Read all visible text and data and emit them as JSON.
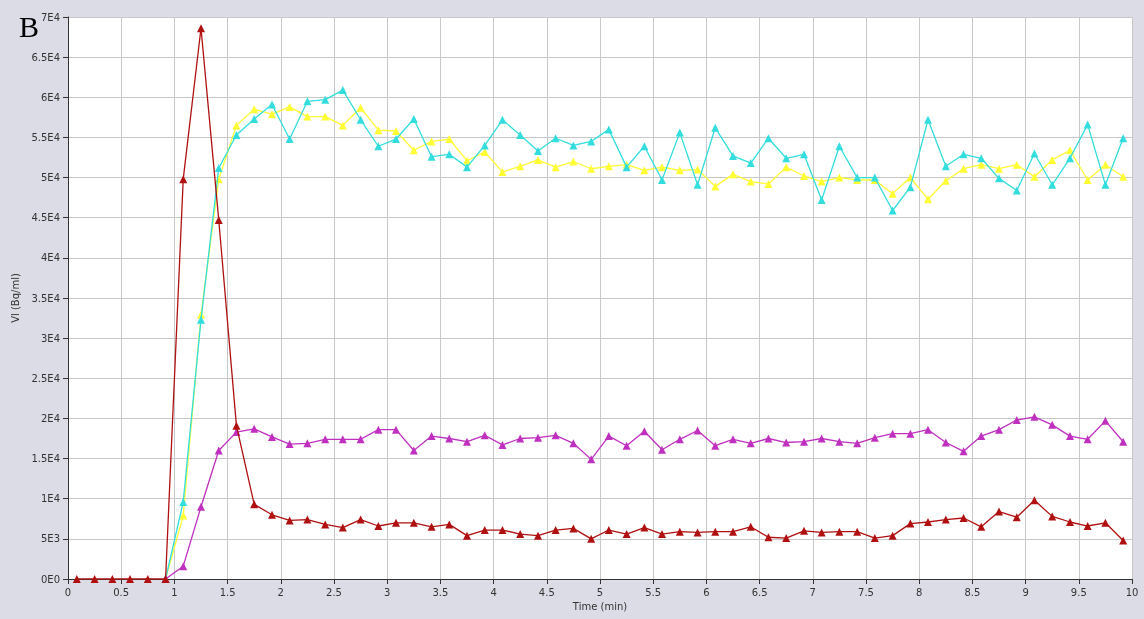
{
  "chart_data": {
    "type": "line",
    "title": "B",
    "xlabel": "Time (min)",
    "ylabel": "Vl (Bq/ml)",
    "x": [
      0.083,
      0.25,
      0.417,
      0.583,
      0.75,
      0.917,
      1.083,
      1.25,
      1.417,
      1.583,
      1.75,
      1.917,
      2.083,
      2.25,
      2.417,
      2.583,
      2.75,
      2.917,
      3.083,
      3.25,
      3.417,
      3.583,
      3.75,
      3.917,
      4.083,
      4.25,
      4.417,
      4.583,
      4.75,
      4.917,
      5.083,
      5.25,
      5.417,
      5.583,
      5.75,
      5.917,
      6.083,
      6.25,
      6.417,
      6.583,
      6.75,
      6.917,
      7.083,
      7.25,
      7.417,
      7.583,
      7.75,
      7.917,
      8.083,
      8.25,
      8.417,
      8.583,
      8.75,
      8.917,
      9.083,
      9.25,
      9.417,
      9.583,
      9.75,
      9.917
    ],
    "series": [
      {
        "color": "#ffff33",
        "values": [
          null,
          null,
          null,
          null,
          null,
          0,
          7900,
          32900,
          49800,
          56500,
          58500,
          57900,
          58800,
          57600,
          57600,
          56500,
          58700,
          55900,
          55800,
          53400,
          54500,
          54800,
          52100,
          53200,
          50700,
          51400,
          52200,
          51300,
          52000,
          51100,
          51400,
          51600,
          50900,
          51300,
          50900,
          51000,
          48900,
          50400,
          49500,
          49200,
          51300,
          50200,
          49500,
          50000,
          49700,
          49700,
          48000,
          50000,
          47300,
          49600,
          51100,
          51600,
          51100,
          51600,
          50100,
          52200,
          53400,
          49700,
          51600,
          50100
        ]
      },
      {
        "color": "#33dddd",
        "values": [
          null,
          null,
          null,
          null,
          null,
          0,
          9600,
          32300,
          51200,
          55300,
          57300,
          59100,
          54800,
          59500,
          59700,
          60900,
          57200,
          53900,
          54800,
          57300,
          52600,
          52900,
          51300,
          54000,
          57200,
          55300,
          53300,
          54900,
          54000,
          54500,
          56000,
          51300,
          53900,
          49700,
          55600,
          49100,
          56200,
          52700,
          51800,
          54900,
          52400,
          52900,
          47200,
          53900,
          50000,
          50000,
          45900,
          48800,
          57200,
          51400,
          52900,
          52400,
          49900,
          48400,
          53000,
          49100,
          52400,
          56600,
          49100,
          54900
        ]
      },
      {
        "color": "#c030c0",
        "values": [
          null,
          null,
          null,
          null,
          null,
          0,
          1600,
          9000,
          16000,
          18300,
          18700,
          17700,
          16800,
          16900,
          17400,
          17400,
          17400,
          18600,
          18600,
          16000,
          17800,
          17500,
          17100,
          17900,
          16700,
          17500,
          17600,
          17900,
          16900,
          14900,
          17800,
          16600,
          18400,
          16100,
          17400,
          18500,
          16600,
          17400,
          16900,
          17500,
          17000,
          17100,
          17500,
          17100,
          16900,
          17600,
          18100,
          18100,
          18600,
          17000,
          15900,
          17800,
          18600,
          19800,
          20200,
          19200,
          17800,
          17400,
          19700,
          17100
        ]
      },
      {
        "color": "#b01010",
        "values": [
          0,
          0,
          0,
          0,
          0,
          0,
          49800,
          68600,
          44700,
          19100,
          9300,
          8000,
          7300,
          7400,
          6800,
          6400,
          7400,
          6600,
          7000,
          7000,
          6500,
          6800,
          5400,
          6100,
          6100,
          5600,
          5400,
          6100,
          6300,
          5000,
          6100,
          5600,
          6400,
          5600,
          5900,
          5800,
          5900,
          5900,
          6500,
          5200,
          5100,
          6000,
          5800,
          5900,
          5900,
          5100,
          5400,
          6900,
          7100,
          7400,
          7600,
          6500,
          8400,
          7700,
          9800,
          7800,
          7100,
          6600,
          7000,
          4800
        ]
      }
    ],
    "xlim": [
      0,
      10
    ],
    "xticks": [
      0,
      0.5,
      1,
      1.5,
      2,
      2.5,
      3,
      3.5,
      4,
      4.5,
      5,
      5.5,
      6,
      6.5,
      7,
      7.5,
      8,
      8.5,
      9,
      9.5,
      10
    ],
    "ylim": [
      0,
      70000
    ],
    "yticks": [
      {
        "value": 0,
        "label": "0E0"
      },
      {
        "value": 5000,
        "label": "5E3"
      },
      {
        "value": 10000,
        "label": "1E4"
      },
      {
        "value": 15000,
        "label": "1.5E4"
      },
      {
        "value": 20000,
        "label": "2E4"
      },
      {
        "value": 25000,
        "label": "2.5E4"
      },
      {
        "value": 30000,
        "label": "3E4"
      },
      {
        "value": 35000,
        "label": "3.5E4"
      },
      {
        "value": 40000,
        "label": "4E4"
      },
      {
        "value": 45000,
        "label": "4.5E4"
      },
      {
        "value": 50000,
        "label": "5E4"
      },
      {
        "value": 55000,
        "label": "5.5E4"
      },
      {
        "value": 60000,
        "label": "6E4"
      },
      {
        "value": 65000,
        "label": "6.5E4"
      },
      {
        "value": 70000,
        "label": "7E4"
      }
    ],
    "grid": true,
    "marker": "triangle",
    "line_style": "solid",
    "legend": false
  }
}
